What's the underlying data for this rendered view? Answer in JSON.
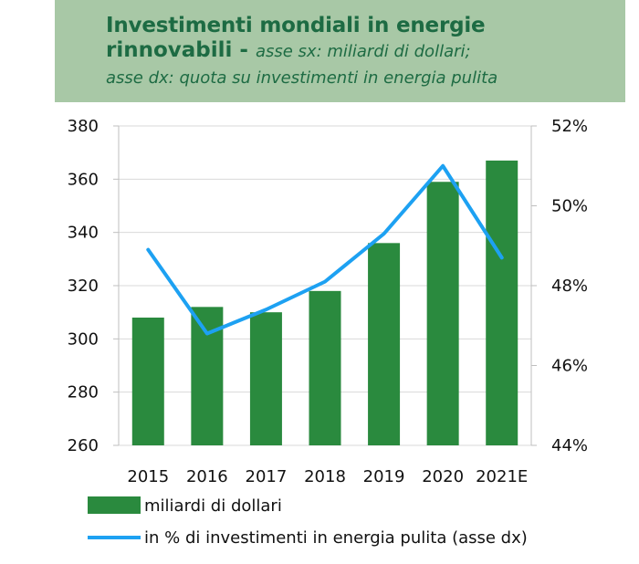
{
  "header": {
    "title_line1": "Investimenti mondiali in energie",
    "title_line2_bold": "rinnovabili  - ",
    "title_line2_italic": "asse sx: miliardi di dollari;",
    "title_line3_italic": "asse dx: quota su investimenti in energia pulita"
  },
  "chart_data": {
    "type": "bar",
    "categories": [
      "2015",
      "2016",
      "2017",
      "2018",
      "2019",
      "2020",
      "2021E"
    ],
    "series": [
      {
        "name": "miliardi di dollari",
        "type": "bar",
        "axis": "left",
        "color": "#2a8a3e",
        "values": [
          308,
          312,
          310,
          318,
          336,
          359,
          367
        ]
      },
      {
        "name": "in % di investimenti in energia pulita (asse dx)",
        "type": "line",
        "axis": "right",
        "color": "#1da1f2",
        "values": [
          48.9,
          46.8,
          47.4,
          48.1,
          49.3,
          51.0,
          48.7
        ]
      }
    ],
    "y_left": {
      "min": 260,
      "max": 380,
      "ticks": [
        "260",
        "280",
        "300",
        "320",
        "340",
        "360",
        "380"
      ]
    },
    "y_right": {
      "min": 44,
      "max": 52,
      "ticks": [
        "44%",
        "46%",
        "48%",
        "50%",
        "52%"
      ]
    },
    "grid": "horizontal",
    "legend_position": "bottom-left"
  }
}
